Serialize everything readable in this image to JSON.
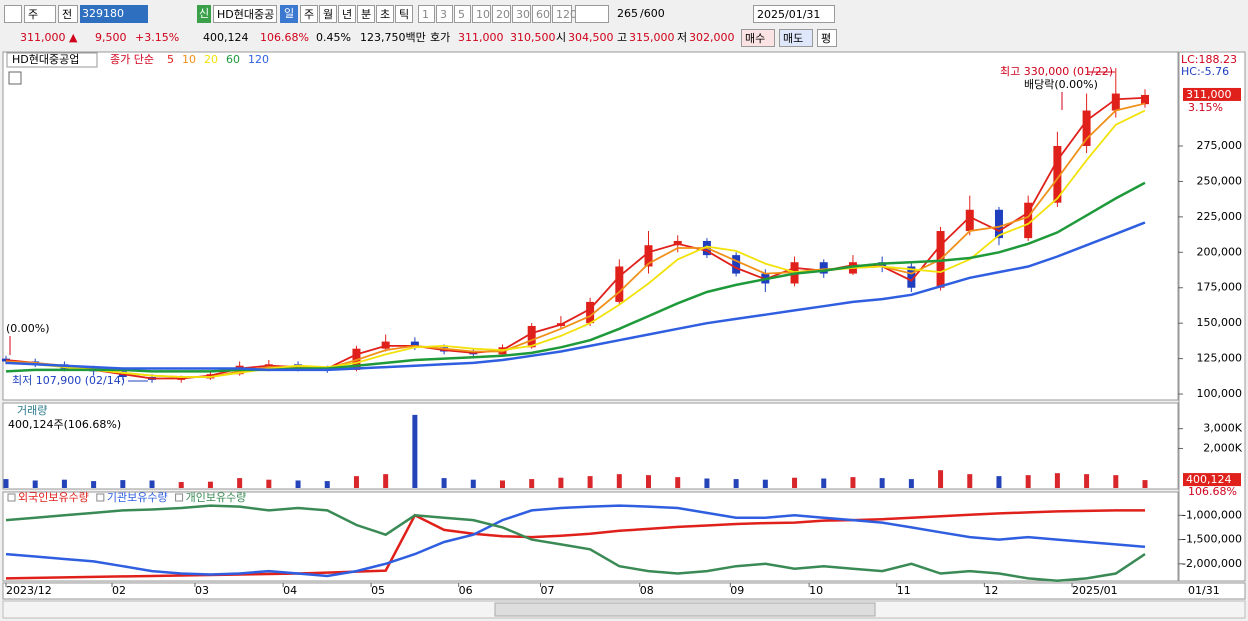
{
  "toolbar": {
    "row1": [
      "주",
      "전",
      "329180",
      "신",
      "HD현대중공",
      "일",
      "주",
      "월",
      "년",
      "분",
      "초",
      "틱",
      "1",
      "3",
      "5",
      "10",
      "20",
      "30",
      "60",
      "120",
      "265",
      "/600",
      "2025/01/31"
    ],
    "row2": [
      "311,000 ▲",
      "9,500",
      "+3.15%",
      "400,124",
      "106.68%",
      "0.45%",
      "123,750백만",
      "호가",
      "311,000",
      "310,500",
      "시",
      "304,500",
      "고",
      "315,000",
      "저",
      "302,000",
      "매수",
      "매도",
      "평"
    ]
  },
  "chart_data": [
    {
      "type": "candlestick",
      "legend_title": "HD현대중공업",
      "legend_label": "종가 단순",
      "up_color": "#e0201b",
      "down_color": "#1f3fbf",
      "open": [
        125000,
        123000,
        121000,
        118000,
        116000,
        112000,
        110000,
        111000,
        114000,
        120000,
        121000,
        118000,
        117000,
        132000,
        137000,
        133000,
        130000,
        128000,
        133000,
        148000,
        150000,
        165000,
        190000,
        205000,
        208000,
        198000,
        185000,
        178000,
        193000,
        185000,
        193000,
        190000,
        175000,
        215000,
        230000,
        210000,
        235000,
        275000,
        300000,
        304500
      ],
      "high": [
        127000,
        125000,
        123000,
        120000,
        118000,
        114000,
        113000,
        116000,
        123000,
        124000,
        123000,
        120000,
        134000,
        142000,
        140000,
        135000,
        132000,
        135000,
        150000,
        155000,
        168000,
        195000,
        215000,
        212000,
        210000,
        200000,
        188000,
        197000,
        195000,
        198000,
        197000,
        193000,
        218000,
        240000,
        232000,
        240000,
        285000,
        312000,
        330000,
        315000
      ],
      "low": [
        121000,
        119000,
        116000,
        113000,
        110000,
        107900,
        108000,
        110000,
        113000,
        118000,
        116000,
        115000,
        116000,
        130000,
        131000,
        128000,
        126000,
        127000,
        132000,
        146000,
        148000,
        163000,
        185000,
        200000,
        196000,
        183000,
        172000,
        176000,
        182000,
        184000,
        186000,
        172000,
        173000,
        212000,
        205000,
        208000,
        232000,
        270000,
        295000,
        302000
      ],
      "close": [
        123000,
        121000,
        118000,
        116000,
        112000,
        110000,
        111000,
        114000,
        120000,
        121000,
        118000,
        117000,
        132000,
        137000,
        133000,
        130000,
        128000,
        133000,
        148000,
        150000,
        165000,
        190000,
        205000,
        208000,
        198000,
        185000,
        178000,
        193000,
        185000,
        193000,
        190000,
        175000,
        215000,
        230000,
        210000,
        235000,
        275000,
        300000,
        312000,
        311000
      ],
      "series": [
        {
          "name": "5",
          "color": "#e0201b",
          "values": [
            124000,
            122000,
            119000,
            117000,
            114000,
            111000,
            111000,
            113000,
            118000,
            120000,
            119000,
            118000,
            128000,
            134000,
            134000,
            131000,
            129000,
            131000,
            143000,
            149000,
            160000,
            183000,
            200000,
            206000,
            201000,
            189000,
            181000,
            189000,
            187000,
            191000,
            190000,
            180000,
            205000,
            225000,
            215000,
            228000,
            265000,
            293000,
            308000,
            309000
          ]
        },
        {
          "name": "10",
          "color": "#f0901a",
          "values": [
            123000,
            122000,
            120000,
            118000,
            115000,
            113000,
            112000,
            112000,
            116000,
            119000,
            119000,
            118000,
            124000,
            131000,
            134000,
            132000,
            130000,
            130000,
            138000,
            146000,
            155000,
            172000,
            192000,
            203000,
            203000,
            194000,
            185000,
            186000,
            188000,
            189000,
            190000,
            185000,
            195000,
            215000,
            218000,
            225000,
            252000,
            280000,
            300000,
            305000
          ]
        },
        {
          "name": "20",
          "color": "#f2e20a",
          "values": [
            122000,
            121000,
            119000,
            117000,
            115000,
            113000,
            112000,
            112000,
            115000,
            118000,
            120000,
            119000,
            122000,
            128000,
            133000,
            134000,
            132000,
            131000,
            134000,
            141000,
            150000,
            163000,
            178000,
            195000,
            204000,
            201000,
            192000,
            186000,
            187000,
            189000,
            190000,
            188000,
            186000,
            195000,
            212000,
            220000,
            238000,
            265000,
            290000,
            300000
          ]
        },
        {
          "name": "60",
          "color": "#1f9a3a",
          "values": [
            116000,
            117000,
            117000,
            117000,
            117000,
            116000,
            116000,
            116000,
            117000,
            117000,
            118000,
            118000,
            120000,
            122000,
            124000,
            125000,
            126000,
            127000,
            129000,
            133000,
            138000,
            146000,
            155000,
            164000,
            172000,
            177000,
            181000,
            185000,
            187000,
            190000,
            192000,
            193000,
            194000,
            196000,
            200000,
            206000,
            214000,
            226000,
            238000,
            249000
          ]
        },
        {
          "name": "120",
          "color": "#2f5fe0",
          "values": [
            122000,
            121000,
            120000,
            119000,
            118000,
            118000,
            118000,
            118000,
            118000,
            117000,
            117000,
            117000,
            118000,
            119000,
            120000,
            121000,
            122000,
            124000,
            127000,
            130000,
            134000,
            138000,
            142000,
            146000,
            150000,
            153000,
            156000,
            159000,
            162000,
            165000,
            167000,
            170000,
            176000,
            182000,
            186000,
            190000,
            197000,
            205000,
            213000,
            221000
          ]
        }
      ],
      "ylim": [
        95800,
        341300
      ],
      "yticks": [
        {
          "value": 100000,
          "label": "100,000"
        },
        {
          "value": 125000,
          "label": "125,000"
        },
        {
          "value": 150000,
          "label": "150,000"
        },
        {
          "value": 175000,
          "label": "175,000"
        },
        {
          "value": 200000,
          "label": "200,000"
        },
        {
          "value": 225000,
          "label": "225,000"
        },
        {
          "value": 250000,
          "label": "250,000"
        },
        {
          "value": 275000,
          "label": "275,000"
        }
      ],
      "lc_label": "LC:188.23",
      "hc_label": "HC:-5.76",
      "last_price": {
        "value": 311000,
        "label": "311,000"
      },
      "change_label": "3.15%",
      "annotations": [
        "최고 330,000 (01/22)",
        "배당락(0.00%)",
        "(0.00%)",
        "최저 107,900 (02/14)"
      ]
    },
    {
      "type": "bar",
      "title": "거래량",
      "label": "400,124주(106.68%)",
      "up_color": "#d8262b",
      "down_color": "#2443b8",
      "values": [
        450000,
        380000,
        420000,
        350000,
        400000,
        380000,
        300000,
        320000,
        500000,
        420000,
        380000,
        350000,
        600000,
        700000,
        3700000,
        500000,
        420000,
        380000,
        450000,
        520000,
        600000,
        700000,
        650000,
        550000,
        480000,
        450000,
        420000,
        520000,
        480000,
        550000,
        500000,
        450000,
        900000,
        700000,
        600000,
        650000,
        750000,
        700000,
        650000,
        400124
      ],
      "ylim": [
        0,
        4300000
      ],
      "yticks": [
        {
          "value": 2000000,
          "label": "2,000K"
        },
        {
          "value": 3000000,
          "label": "3,000K"
        }
      ],
      "last_value": {
        "value": 400124,
        "label": "400,124"
      },
      "ratio_label": "106.68%"
    },
    {
      "type": "line",
      "series": [
        {
          "name": "외국인보유수량",
          "color": "#e0201b",
          "values": [
            -2300000,
            -2290000,
            -2280000,
            -2270000,
            -2260000,
            -2250000,
            -2240000,
            -2230000,
            -2220000,
            -2210000,
            -2200000,
            -2180000,
            -2160000,
            -2140000,
            -1000000,
            -1300000,
            -1380000,
            -1430000,
            -1450000,
            -1420000,
            -1380000,
            -1320000,
            -1280000,
            -1240000,
            -1210000,
            -1180000,
            -1160000,
            -1150000,
            -1110000,
            -1100000,
            -1080000,
            -1050000,
            -1020000,
            -990000,
            -960000,
            -940000,
            -920000,
            -910000,
            -900000,
            -900000
          ]
        },
        {
          "name": "기관보유수량",
          "color": "#2f5fe0",
          "values": [
            -1800000,
            -1850000,
            -1900000,
            -1950000,
            -2050000,
            -2150000,
            -2200000,
            -2220000,
            -2200000,
            -2150000,
            -2200000,
            -2250000,
            -2150000,
            -2000000,
            -1800000,
            -1550000,
            -1400000,
            -1100000,
            -900000,
            -850000,
            -820000,
            -800000,
            -820000,
            -850000,
            -950000,
            -1050000,
            -1050000,
            -1000000,
            -1050000,
            -1100000,
            -1150000,
            -1250000,
            -1350000,
            -1450000,
            -1500000,
            -1450000,
            -1500000,
            -1550000,
            -1600000,
            -1650000
          ]
        },
        {
          "name": "개인보유수량",
          "color": "#3a8a55",
          "values": [
            -1100000,
            -1050000,
            -1000000,
            -950000,
            -900000,
            -880000,
            -850000,
            -800000,
            -820000,
            -900000,
            -850000,
            -900000,
            -1200000,
            -1400000,
            -1000000,
            -1050000,
            -1100000,
            -1250000,
            -1500000,
            -1600000,
            -1700000,
            -2050000,
            -2150000,
            -2200000,
            -2150000,
            -2050000,
            -2000000,
            -2100000,
            -2050000,
            -2100000,
            -2150000,
            -2000000,
            -2200000,
            -2150000,
            -2200000,
            -2300000,
            -2350000,
            -2300000,
            -2200000,
            -1800000
          ]
        }
      ],
      "ylim": [
        -2354000,
        -520000
      ],
      "yticks": [
        {
          "value": -1000000,
          "label": "-1,000,000"
        },
        {
          "value": -1500000,
          "label": "-1,500,000"
        },
        {
          "value": -2000000,
          "label": "-2,000,000"
        }
      ],
      "xlim": [
        0,
        39
      ],
      "xticks": [
        {
          "value": 0,
          "label": "2023/12"
        },
        {
          "value": 3.63,
          "label": "02"
        },
        {
          "value": 6.47,
          "label": "03"
        },
        {
          "value": 9.49,
          "label": "04"
        },
        {
          "value": 12.5,
          "label": "05"
        },
        {
          "value": 15.5,
          "label": "06"
        },
        {
          "value": 18.3,
          "label": "07"
        },
        {
          "value": 21.7,
          "label": "08"
        },
        {
          "value": 24.8,
          "label": "09"
        },
        {
          "value": 27.5,
          "label": "10"
        },
        {
          "value": 30.5,
          "label": "11"
        },
        {
          "value": 33.5,
          "label": "12"
        },
        {
          "value": 36.5,
          "label": "2025/01"
        }
      ],
      "end_label": "01/31"
    }
  ]
}
